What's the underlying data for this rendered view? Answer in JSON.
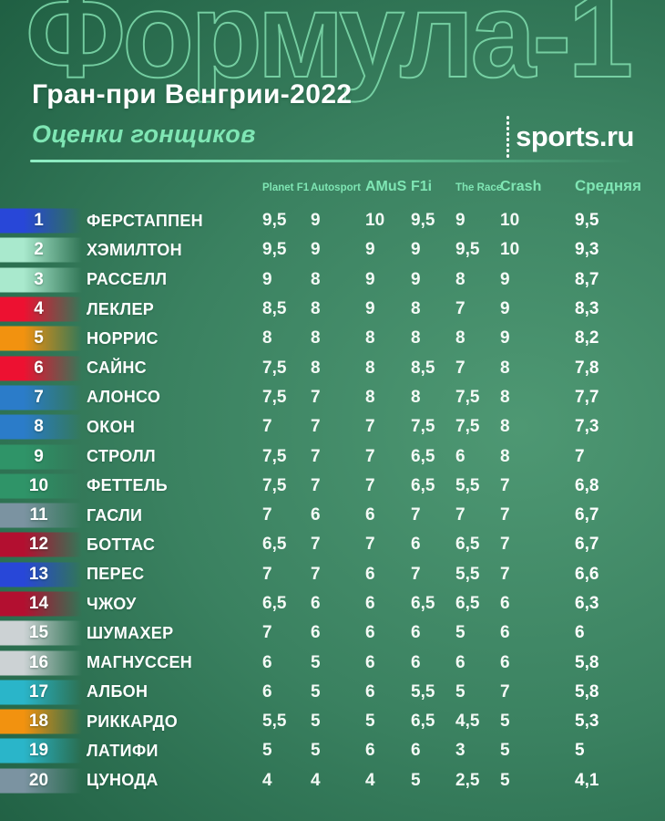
{
  "header": {
    "background_title": "Формула-1",
    "title": "Гран-при Венгрии-2022",
    "subtitle": "Оценки гонщиков",
    "logo_text": "sports.ru"
  },
  "colors": {
    "background_dark": "#1c5b3f",
    "background_light": "#4e9873",
    "accent_mint": "#7fe6b4",
    "outline_mint": "#81deaf",
    "text_white": "#ffffff"
  },
  "chart_data": {
    "type": "table",
    "title": "Формула-1 — Гран-при Венгрии-2022",
    "caption": "Оценки гонщиков",
    "columns": [
      "Planet F1",
      "Autosport",
      "AMuS",
      "F1i",
      "The Race",
      "Crash",
      "Средняя"
    ],
    "rows": [
      {
        "pos": "1",
        "driver": "ФЕРСТАППЕН",
        "team": "#2847d8",
        "scores": [
          "9,5",
          "9",
          "10",
          "9,5",
          "9",
          "10"
        ],
        "avg": "9,5"
      },
      {
        "pos": "2",
        "driver": "ХЭМИЛТОН",
        "team": "#a9e9cd",
        "scores": [
          "9,5",
          "9",
          "9",
          "9",
          "9,5",
          "10"
        ],
        "avg": "9,3"
      },
      {
        "pos": "3",
        "driver": "РАССЕЛЛ",
        "team": "#a9e9cd",
        "scores": [
          "9",
          "8",
          "9",
          "9",
          "8",
          "9"
        ],
        "avg": "8,7"
      },
      {
        "pos": "4",
        "driver": "ЛЕКЛЕР",
        "team": "#ed1131",
        "scores": [
          "8,5",
          "8",
          "9",
          "8",
          "7",
          "9"
        ],
        "avg": "8,3"
      },
      {
        "pos": "5",
        "driver": "НОРРИС",
        "team": "#f2920f",
        "scores": [
          "8",
          "8",
          "8",
          "8",
          "8",
          "9"
        ],
        "avg": "8,2"
      },
      {
        "pos": "6",
        "driver": "САЙНС",
        "team": "#ed1131",
        "scores": [
          "7,5",
          "8",
          "8",
          "8,5",
          "7",
          "8"
        ],
        "avg": "7,8"
      },
      {
        "pos": "7",
        "driver": "АЛОНСО",
        "team": "#2b7cc9",
        "scores": [
          "7,5",
          "7",
          "8",
          "8",
          "7,5",
          "8"
        ],
        "avg": "7,7"
      },
      {
        "pos": "8",
        "driver": "ОКОН",
        "team": "#2b7cc9",
        "scores": [
          "7",
          "7",
          "7",
          "7,5",
          "7,5",
          "8"
        ],
        "avg": "7,3"
      },
      {
        "pos": "9",
        "driver": "СТРОЛЛ",
        "team": "#2f9468",
        "scores": [
          "7,5",
          "7",
          "7",
          "6,5",
          "6",
          "8"
        ],
        "avg": "7"
      },
      {
        "pos": "10",
        "driver": "ФЕТТЕЛЬ",
        "team": "#2f9468",
        "scores": [
          "7,5",
          "7",
          "7",
          "6,5",
          "5,5",
          "7"
        ],
        "avg": "6,8"
      },
      {
        "pos": "11",
        "driver": "ГАСЛИ",
        "team": "#7b93a1",
        "scores": [
          "7",
          "6",
          "6",
          "7",
          "7",
          "7"
        ],
        "avg": "6,7"
      },
      {
        "pos": "12",
        "driver": "БОТТАС",
        "team": "#b30f30",
        "scores": [
          "6,5",
          "7",
          "7",
          "6",
          "6,5",
          "7"
        ],
        "avg": "6,7"
      },
      {
        "pos": "13",
        "driver": "ПЕРЕС",
        "team": "#2847d8",
        "scores": [
          "7",
          "7",
          "6",
          "7",
          "5,5",
          "7"
        ],
        "avg": "6,6"
      },
      {
        "pos": "14",
        "driver": "ЧЖОУ",
        "team": "#b30f30",
        "scores": [
          "6,5",
          "6",
          "6",
          "6,5",
          "6,5",
          "6"
        ],
        "avg": "6,3"
      },
      {
        "pos": "15",
        "driver": "ШУМАХЕР",
        "team": "#ccd2d4",
        "scores": [
          "7",
          "6",
          "6",
          "6",
          "5",
          "6"
        ],
        "avg": "6"
      },
      {
        "pos": "16",
        "driver": "МАГНУССЕН",
        "team": "#ccd2d4",
        "scores": [
          "6",
          "5",
          "6",
          "6",
          "6",
          "6"
        ],
        "avg": "5,8"
      },
      {
        "pos": "17",
        "driver": "АЛБОН",
        "team": "#2ab5c9",
        "scores": [
          "6",
          "5",
          "6",
          "5,5",
          "5",
          "7"
        ],
        "avg": "5,8"
      },
      {
        "pos": "18",
        "driver": "РИККАРДО",
        "team": "#f2920f",
        "scores": [
          "5,5",
          "5",
          "5",
          "6,5",
          "4,5",
          "5"
        ],
        "avg": "5,3"
      },
      {
        "pos": "19",
        "driver": "ЛАТИФИ",
        "team": "#2ab5c9",
        "scores": [
          "5",
          "5",
          "6",
          "6",
          "3",
          "5"
        ],
        "avg": "5"
      },
      {
        "pos": "20",
        "driver": "ЦУНОДА",
        "team": "#7b93a1",
        "scores": [
          "4",
          "4",
          "4",
          "5",
          "2,5",
          "5"
        ],
        "avg": "4,1"
      }
    ]
  }
}
